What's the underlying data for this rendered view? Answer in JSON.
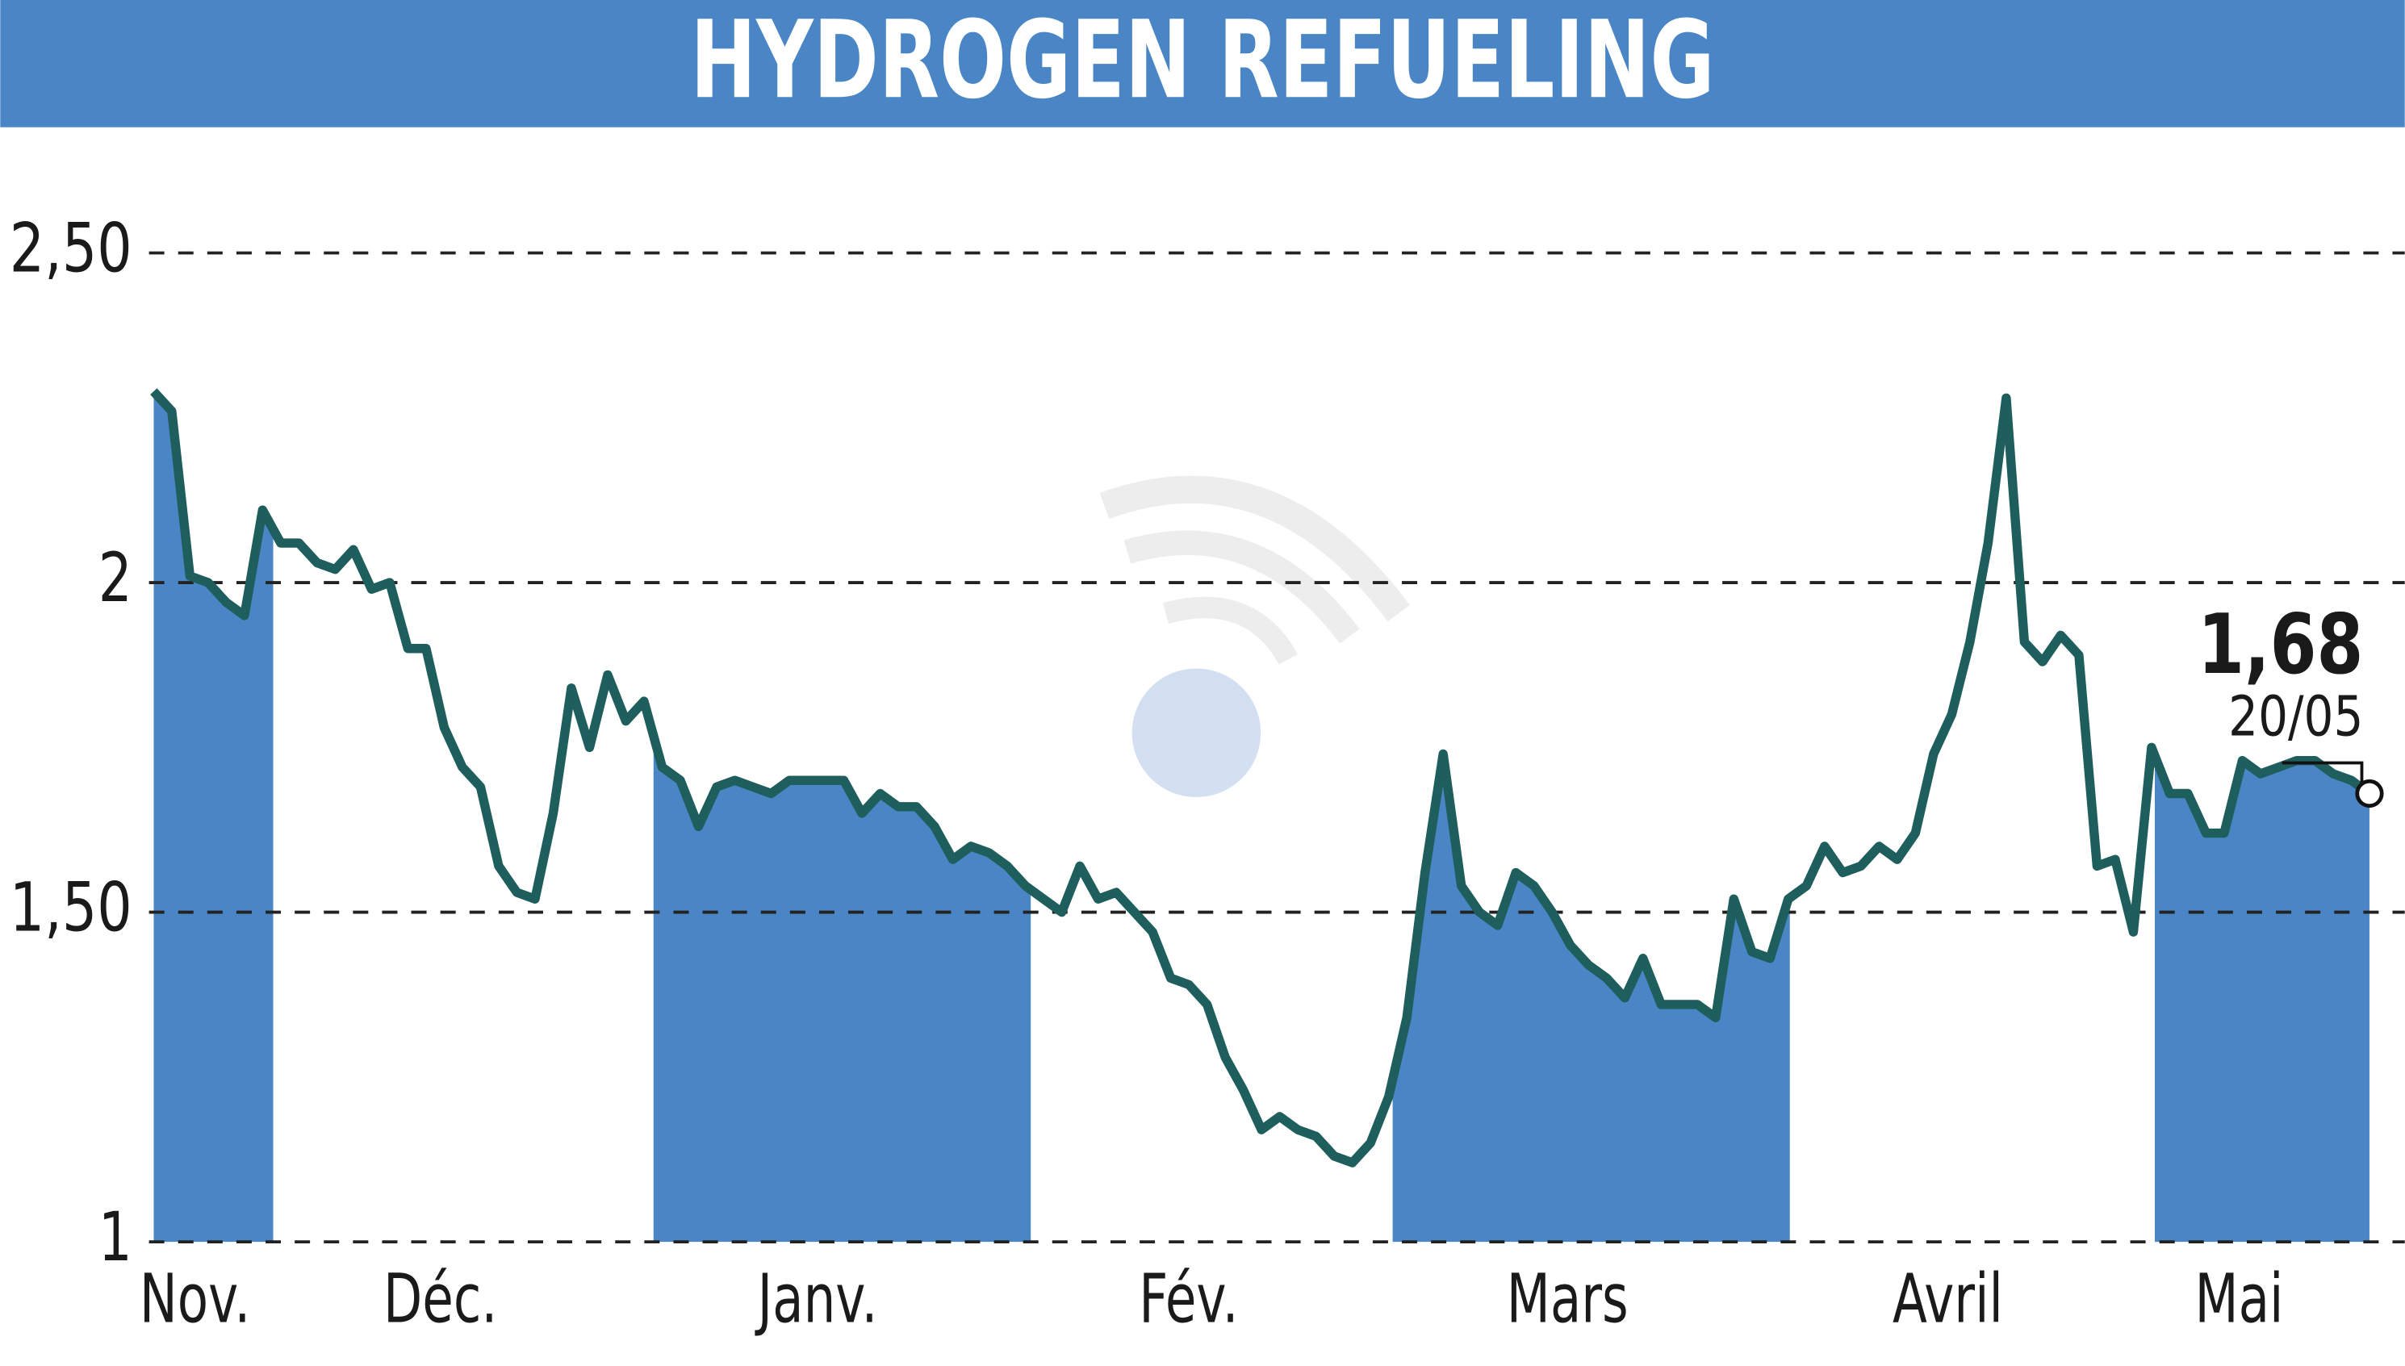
{
  "chart_data": {
    "type": "line",
    "title": "HYDROGEN REFUELING",
    "months": [
      "Nov.",
      "Déc.",
      "Janv.",
      "Fév.",
      "Mars",
      "Avril",
      "Mai"
    ],
    "series": [
      {
        "color": "#1e5e5c",
        "values": [
          2.29,
          2.26,
          2.01,
          2.0,
          1.97,
          1.95,
          2.11,
          2.06,
          2.06,
          2.03,
          2.02,
          2.05,
          1.99,
          2.0,
          1.9,
          1.9,
          1.78,
          1.72,
          1.69,
          1.57,
          1.53,
          1.52,
          1.65,
          1.84,
          1.75,
          1.86,
          1.79,
          1.82,
          1.72,
          1.7,
          1.63,
          1.69,
          1.7,
          1.69,
          1.68,
          1.7,
          1.7,
          1.7,
          1.7,
          1.65,
          1.68,
          1.66,
          1.66,
          1.63,
          1.58,
          1.6,
          1.59,
          1.57,
          1.54,
          1.52,
          1.5,
          1.57,
          1.52,
          1.53,
          1.5,
          1.47,
          1.4,
          1.39,
          1.36,
          1.28,
          1.23,
          1.17,
          1.19,
          1.17,
          1.16,
          1.13,
          1.12,
          1.15,
          1.22,
          1.34,
          1.56,
          1.74,
          1.54,
          1.5,
          1.48,
          1.56,
          1.54,
          1.5,
          1.45,
          1.42,
          1.4,
          1.37,
          1.43,
          1.36,
          1.36,
          1.36,
          1.34,
          1.52,
          1.44,
          1.43,
          1.52,
          1.54,
          1.6,
          1.56,
          1.57,
          1.6,
          1.58,
          1.62,
          1.74,
          1.8,
          1.91,
          2.06,
          2.28,
          1.91,
          1.88,
          1.92,
          1.89,
          1.57,
          1.58,
          1.47,
          1.75,
          1.68,
          1.68,
          1.62,
          1.62,
          1.73,
          1.71,
          1.72,
          1.73,
          1.73,
          1.71,
          1.7,
          1.68
        ]
      }
    ],
    "band_color": "#4a86c5",
    "ylim": [
      1,
      2.5
    ],
    "yticks": [
      1,
      {
        "value": 1.5,
        "label": "1,50"
      },
      2,
      {
        "value": 2.5,
        "label": "2,50"
      }
    ],
    "grid": true,
    "annotation": {
      "value_label": "1,68",
      "date": "20/05"
    }
  }
}
